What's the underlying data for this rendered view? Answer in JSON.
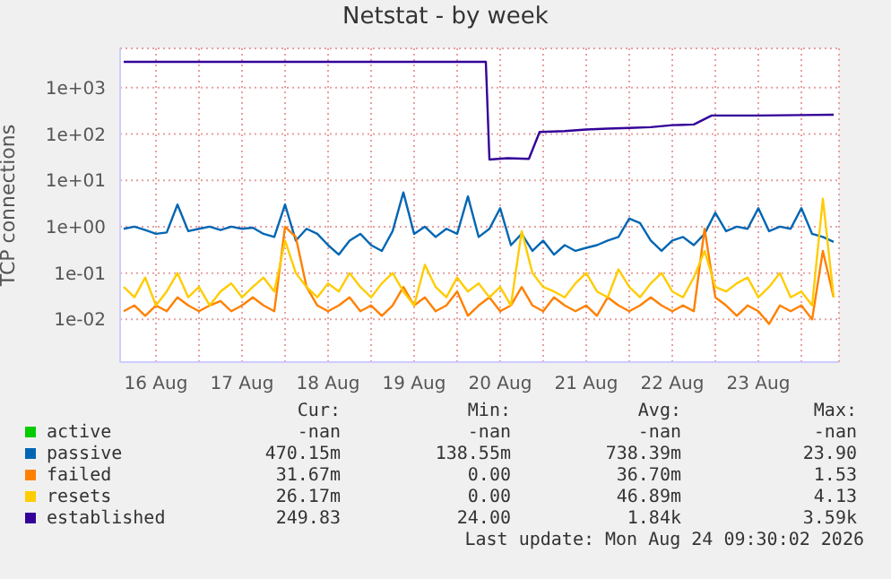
{
  "chart_data": {
    "type": "line",
    "title": "Netstat - by week",
    "ylabel": "TCP connections",
    "log": "y",
    "grid": true,
    "legend": "bottom",
    "xlim": [
      "2026-08-16T02:00",
      "2026-08-24T10:30"
    ],
    "xticks": [
      {
        "value": "2026-08-16T12:00",
        "label": "16 Aug"
      },
      {
        "value": "2026-08-17T00:00",
        "label": null
      },
      {
        "value": "2026-08-17T12:00",
        "label": "17 Aug"
      },
      {
        "value": "2026-08-18T00:00",
        "label": null
      },
      {
        "value": "2026-08-18T12:00",
        "label": "18 Aug"
      },
      {
        "value": "2026-08-19T00:00",
        "label": null
      },
      {
        "value": "2026-08-19T12:00",
        "label": "19 Aug"
      },
      {
        "value": "2026-08-20T00:00",
        "label": null
      },
      {
        "value": "2026-08-20T12:00",
        "label": "20 Aug"
      },
      {
        "value": "2026-08-21T00:00",
        "label": null
      },
      {
        "value": "2026-08-21T12:00",
        "label": "21 Aug"
      },
      {
        "value": "2026-08-22T00:00",
        "label": null
      },
      {
        "value": "2026-08-22T12:00",
        "label": "22 Aug"
      },
      {
        "value": "2026-08-23T00:00",
        "label": null
      },
      {
        "value": "2026-08-23T12:00",
        "label": "23 Aug"
      },
      {
        "value": "2026-08-24T00:00",
        "label": null
      }
    ],
    "ylim": [
      0.0012,
      7000
    ],
    "yticks": [
      {
        "value": 0.01,
        "label": "1e-02"
      },
      {
        "value": 0.1,
        "label": "1e-01"
      },
      {
        "value": 1,
        "label": "1e+00"
      },
      {
        "value": 10,
        "label": "1e+01"
      },
      {
        "value": 100,
        "label": "1e+02"
      },
      {
        "value": 1000,
        "label": "1e+03"
      }
    ],
    "x": [
      "2026-08-16T03:00",
      "2026-08-16T06:00",
      "2026-08-16T09:00",
      "2026-08-16T12:00",
      "2026-08-16T15:00",
      "2026-08-16T18:00",
      "2026-08-16T21:00",
      "2026-08-17T00:00",
      "2026-08-17T03:00",
      "2026-08-17T06:00",
      "2026-08-17T09:00",
      "2026-08-17T12:00",
      "2026-08-17T15:00",
      "2026-08-17T18:00",
      "2026-08-17T21:00",
      "2026-08-18T00:00",
      "2026-08-18T03:00",
      "2026-08-18T06:00",
      "2026-08-18T09:00",
      "2026-08-18T12:00",
      "2026-08-18T15:00",
      "2026-08-18T18:00",
      "2026-08-18T21:00",
      "2026-08-19T00:00",
      "2026-08-19T03:00",
      "2026-08-19T06:00",
      "2026-08-19T09:00",
      "2026-08-19T12:00",
      "2026-08-19T15:00",
      "2026-08-19T18:00",
      "2026-08-19T21:00",
      "2026-08-20T00:00",
      "2026-08-20T03:00",
      "2026-08-20T06:00",
      "2026-08-20T09:00",
      "2026-08-20T12:00",
      "2026-08-20T15:00",
      "2026-08-20T18:00",
      "2026-08-20T21:00",
      "2026-08-21T00:00",
      "2026-08-21T03:00",
      "2026-08-21T06:00",
      "2026-08-21T09:00",
      "2026-08-21T12:00",
      "2026-08-21T15:00",
      "2026-08-21T18:00",
      "2026-08-21T21:00",
      "2026-08-22T00:00",
      "2026-08-22T03:00",
      "2026-08-22T06:00",
      "2026-08-22T09:00",
      "2026-08-22T12:00",
      "2026-08-22T15:00",
      "2026-08-22T18:00",
      "2026-08-22T21:00",
      "2026-08-23T00:00",
      "2026-08-23T03:00",
      "2026-08-23T06:00",
      "2026-08-23T09:00",
      "2026-08-23T12:00",
      "2026-08-23T15:00",
      "2026-08-23T18:00",
      "2026-08-23T21:00",
      "2026-08-24T00:00",
      "2026-08-24T03:00",
      "2026-08-24T06:00",
      "2026-08-24T09:00"
    ],
    "series": [
      {
        "name": "active",
        "color": "#00cc00",
        "values": [
          null,
          null,
          null,
          null,
          null,
          null,
          null,
          null,
          null,
          null,
          null,
          null,
          null,
          null,
          null,
          null,
          null,
          null,
          null,
          null,
          null,
          null,
          null,
          null,
          null,
          null,
          null,
          null,
          null,
          null,
          null,
          null,
          null,
          null,
          null,
          null,
          null,
          null,
          null,
          null,
          null,
          null,
          null,
          null,
          null,
          null,
          null,
          null,
          null,
          null,
          null,
          null,
          null,
          null,
          null,
          null,
          null,
          null,
          null,
          null,
          null,
          null,
          null,
          null,
          null,
          null,
          null
        ]
      },
      {
        "name": "passive",
        "color": "#0066b3",
        "values": [
          0.9,
          1.0,
          0.85,
          0.7,
          0.75,
          3.0,
          0.8,
          0.9,
          1.0,
          0.85,
          1.0,
          0.9,
          0.95,
          0.7,
          0.6,
          3.0,
          0.5,
          0.9,
          0.7,
          0.4,
          0.25,
          0.5,
          0.7,
          0.4,
          0.3,
          0.8,
          5.5,
          0.7,
          1.0,
          0.6,
          0.9,
          0.7,
          4.5,
          0.6,
          0.9,
          2.5,
          0.4,
          0.7,
          0.3,
          0.5,
          0.25,
          0.4,
          0.3,
          0.35,
          0.4,
          0.5,
          0.6,
          1.5,
          1.2,
          0.5,
          0.3,
          0.5,
          0.6,
          0.4,
          0.7,
          2.0,
          0.8,
          1.0,
          0.9,
          2.5,
          0.8,
          1.0,
          0.9,
          2.5,
          0.7,
          0.6,
          0.47
        ]
      },
      {
        "name": "failed",
        "color": "#ff8000",
        "values": [
          0.015,
          0.02,
          0.012,
          0.02,
          0.015,
          0.03,
          0.02,
          0.015,
          0.02,
          0.025,
          0.015,
          0.02,
          0.03,
          0.02,
          0.015,
          1.0,
          0.6,
          0.05,
          0.02,
          0.015,
          0.02,
          0.03,
          0.015,
          0.02,
          0.012,
          0.02,
          0.05,
          0.02,
          0.03,
          0.015,
          0.02,
          0.04,
          0.012,
          0.02,
          0.03,
          0.015,
          0.02,
          0.05,
          0.02,
          0.015,
          0.03,
          0.02,
          0.015,
          0.02,
          0.012,
          0.03,
          0.02,
          0.015,
          0.02,
          0.03,
          0.02,
          0.015,
          0.02,
          0.015,
          0.9,
          0.03,
          0.02,
          0.012,
          0.02,
          0.015,
          0.008,
          0.02,
          0.015,
          0.02,
          0.01,
          0.3,
          0.03
        ]
      },
      {
        "name": "resets",
        "color": "#ffcc00",
        "values": [
          0.05,
          0.03,
          0.08,
          0.02,
          0.04,
          0.1,
          0.03,
          0.05,
          0.02,
          0.04,
          0.06,
          0.03,
          0.05,
          0.08,
          0.04,
          0.5,
          0.1,
          0.05,
          0.03,
          0.06,
          0.04,
          0.1,
          0.05,
          0.03,
          0.06,
          0.1,
          0.04,
          0.02,
          0.15,
          0.05,
          0.03,
          0.08,
          0.04,
          0.06,
          0.03,
          0.05,
          0.02,
          0.8,
          0.1,
          0.05,
          0.04,
          0.03,
          0.06,
          0.1,
          0.04,
          0.03,
          0.12,
          0.05,
          0.03,
          0.06,
          0.1,
          0.04,
          0.03,
          0.08,
          0.3,
          0.05,
          0.04,
          0.06,
          0.08,
          0.03,
          0.05,
          0.1,
          0.03,
          0.04,
          0.02,
          4.0,
          0.03
        ]
      },
      {
        "name": "established",
        "color": "#330099",
        "x": [
          "2026-08-16T03:00",
          "2026-08-20T08:00",
          "2026-08-20T09:00",
          "2026-08-20T14:00",
          "2026-08-20T20:00",
          "2026-08-20T23:00",
          "2026-08-21T06:00",
          "2026-08-21T12:00",
          "2026-08-21T18:00",
          "2026-08-22T00:00",
          "2026-08-22T06:00",
          "2026-08-22T12:00",
          "2026-08-22T18:00",
          "2026-08-22T23:00",
          "2026-08-23T12:00",
          "2026-08-24T00:00",
          "2026-08-24T09:00"
        ],
        "values": [
          3590,
          3590,
          28,
          30,
          29,
          110,
          115,
          125,
          130,
          135,
          140,
          155,
          160,
          250,
          250,
          255,
          260
        ]
      }
    ],
    "annotations": [
      "Cur:",
      "Min:",
      "Avg:",
      "Max:",
      "-nan",
      "-nan",
      "-nan",
      "-nan",
      "470.15m",
      "138.55m",
      "738.39m",
      "23.90",
      "31.67m",
      "0.00",
      "36.70m",
      "1.53",
      "26.17m",
      "0.00",
      "46.89m",
      "4.13",
      "249.83",
      "24.00",
      "1.84k",
      "3.59k",
      "Last update: Mon Aug 24 09:30:02 2026"
    ]
  }
}
